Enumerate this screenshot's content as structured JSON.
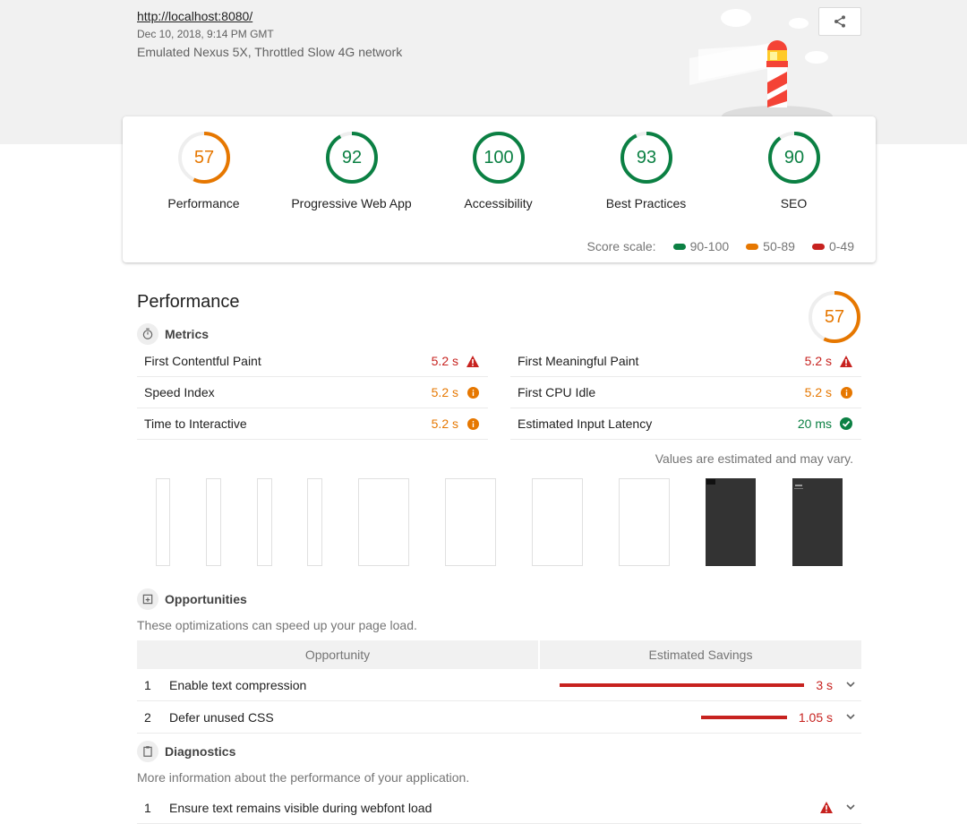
{
  "header": {
    "url": "http://localhost:8080/",
    "date": "Dec 10, 2018, 9:14 PM GMT",
    "environment": "Emulated Nexus 5X, Throttled Slow 4G network",
    "share_icon": "share-icon"
  },
  "categories": [
    {
      "score": "57",
      "label": "Performance",
      "value": 57,
      "color": "#e67700"
    },
    {
      "score": "92",
      "label": "Progressive Web App",
      "value": 92,
      "color": "#0b8043"
    },
    {
      "score": "100",
      "label": "Accessibility",
      "value": 100,
      "color": "#0b8043"
    },
    {
      "score": "93",
      "label": "Best Practices",
      "value": 93,
      "color": "#0b8043"
    },
    {
      "score": "90",
      "label": "SEO",
      "value": 90,
      "color": "#0b8043"
    }
  ],
  "score_scale": {
    "label": "Score scale:",
    "ranges": [
      {
        "label": "90-100",
        "color": "#0b8043"
      },
      {
        "label": "50-89",
        "color": "#e67700"
      },
      {
        "label": "0-49",
        "color": "#c7221f"
      }
    ]
  },
  "performance": {
    "title": "Performance",
    "score": "57",
    "metrics_title": "Metrics",
    "metrics": [
      {
        "name": "First Contentful Paint",
        "value": "5.2 s",
        "status": "fail"
      },
      {
        "name": "First Meaningful Paint",
        "value": "5.2 s",
        "status": "fail"
      },
      {
        "name": "Speed Index",
        "value": "5.2 s",
        "status": "average"
      },
      {
        "name": "First CPU Idle",
        "value": "5.2 s",
        "status": "average"
      },
      {
        "name": "Time to Interactive",
        "value": "5.2 s",
        "status": "average"
      },
      {
        "name": "Estimated Input Latency",
        "value": "20 ms",
        "status": "pass"
      }
    ],
    "estimated_note": "Values are estimated and may vary.",
    "opportunities_title": "Opportunities",
    "opportunities_desc": "These optimizations can speed up your page load.",
    "opportunity_col": "Opportunity",
    "savings_col": "Estimated Savings",
    "opportunities": [
      {
        "index": "1",
        "title": "Enable text compression",
        "savings": "3 s",
        "seconds": 3
      },
      {
        "index": "2",
        "title": "Defer unused CSS",
        "savings": "1.05 s",
        "seconds": 1.05
      }
    ],
    "diagnostics_title": "Diagnostics",
    "diagnostics_desc": "More information about the performance of your application.",
    "diagnostics": [
      {
        "index": "1",
        "title": "Ensure text remains visible during webfont load",
        "status": "fail"
      }
    ]
  }
}
